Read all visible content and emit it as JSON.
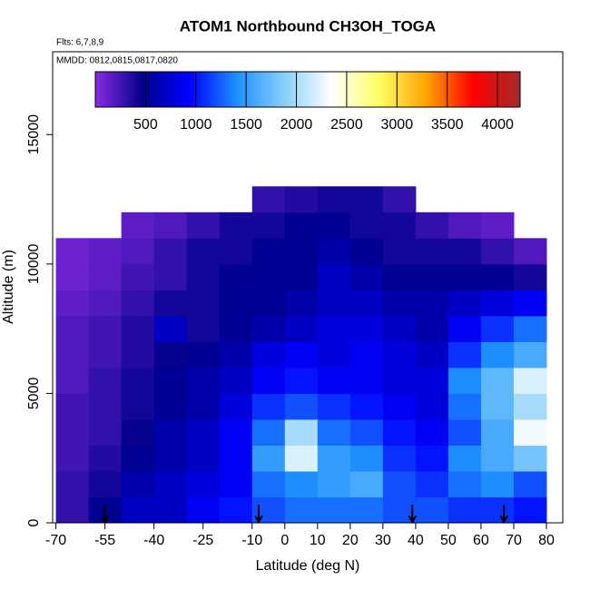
{
  "chart_data": {
    "type": "heatmap",
    "title": "ATOM1 Northbound CH3OH_TOGA",
    "subtitle": "Flts: 6,7,8,9",
    "annotation": "MMDD: 0812,0815,0817,0820",
    "x_label": "Latitude (deg N)",
    "y_label": "Altitude (m)",
    "xlim": [
      -71,
      85
    ],
    "ylim": [
      0,
      18200
    ],
    "xticks": [
      -70,
      -55,
      -40,
      -25,
      -10,
      0,
      10,
      20,
      30,
      40,
      50,
      60,
      70,
      80
    ],
    "yticks": [
      0,
      5000,
      10000,
      15000
    ],
    "lat_edges": [
      -70,
      -60,
      -50,
      -40,
      -30,
      -20,
      -10,
      0,
      10,
      20,
      30,
      40,
      50,
      60,
      70,
      80
    ],
    "alt_edges": [
      0,
      1000,
      2000,
      3000,
      4000,
      5000,
      6000,
      7000,
      8000,
      9000,
      10000,
      11000,
      12000,
      13000
    ],
    "values": [
      [
        300,
        500,
        700,
        700,
        900,
        1000,
        1200,
        1300,
        1300,
        1300,
        1200,
        1200,
        1100,
        1100,
        1000
      ],
      [
        300,
        400,
        600,
        700,
        800,
        900,
        1300,
        1400,
        1500,
        1600,
        1200,
        1100,
        1300,
        1400,
        1200
      ],
      [
        250,
        350,
        500,
        600,
        700,
        900,
        1500,
        2200,
        1500,
        1400,
        1100,
        1000,
        1400,
        1600,
        1800
      ],
      [
        250,
        300,
        450,
        600,
        700,
        900,
        1300,
        2000,
        1300,
        1200,
        1000,
        900,
        1200,
        1600,
        2300
      ],
      [
        250,
        300,
        400,
        500,
        600,
        800,
        1100,
        1200,
        1100,
        1000,
        900,
        800,
        1300,
        1700,
        2000
      ],
      [
        200,
        300,
        400,
        500,
        600,
        700,
        900,
        1000,
        900,
        900,
        800,
        800,
        1400,
        1700,
        2200
      ],
      [
        200,
        250,
        350,
        450,
        500,
        600,
        800,
        900,
        800,
        900,
        800,
        700,
        1100,
        1400,
        1600
      ],
      [
        200,
        250,
        350,
        700,
        400,
        500,
        600,
        700,
        800,
        800,
        700,
        600,
        900,
        1100,
        1300
      ],
      [
        150,
        200,
        300,
        400,
        400,
        500,
        500,
        600,
        700,
        700,
        600,
        600,
        700,
        800,
        900
      ],
      [
        100,
        150,
        250,
        300,
        400,
        500,
        500,
        500,
        700,
        600,
        500,
        500,
        500,
        500,
        400
      ],
      [
        100,
        150,
        200,
        300,
        400,
        400,
        500,
        500,
        600,
        500,
        400,
        400,
        400,
        300,
        200
      ],
      [
        null,
        null,
        150,
        200,
        300,
        400,
        400,
        500,
        500,
        400,
        400,
        300,
        200,
        150,
        null
      ],
      [
        null,
        null,
        null,
        null,
        null,
        null,
        300,
        350,
        400,
        400,
        300,
        null,
        null,
        null,
        null
      ]
    ],
    "colorscale": [
      "#8a2be2",
      "#00008b",
      "#0000ff",
      "#1e90ff",
      "#87cefa",
      "#ffffff",
      "#ffff66",
      "#ffa500",
      "#ff0000",
      "#a52a2a"
    ],
    "colorbar_lim": [
      0,
      4225
    ],
    "colorbar_ticks": [
      500,
      1000,
      1500,
      2000,
      2500,
      3000,
      3500,
      4000
    ],
    "flight_arrows": [
      -55,
      -8,
      39,
      67
    ]
  }
}
